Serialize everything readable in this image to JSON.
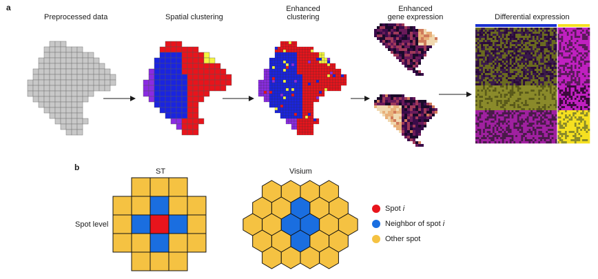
{
  "panel_a": {
    "letter": "a",
    "stages": {
      "preprocessed": "Preprocessed data",
      "spatial": "Spatial clustering",
      "enhanced_clustering_l1": "Enhanced",
      "enhanced_clustering_l2": "clustering",
      "enhanced_gene_l1": "Enhanced",
      "enhanced_gene_l2": "gene expression",
      "differential": "Differential expression"
    }
  },
  "panel_b": {
    "letter": "b",
    "st_title": "ST",
    "visium_title": "Visium",
    "row_label": "Spot level",
    "legend": [
      {
        "label_pre": "Spot ",
        "label_italic": "i",
        "color": "#e8141c"
      },
      {
        "label_pre": "Neighbor of spot ",
        "label_italic": "i",
        "color": "#1a6ee0"
      },
      {
        "label_pre": "Other spot",
        "label_italic": "",
        "color": "#f5c242"
      }
    ]
  },
  "colors": {
    "grid_gray": "#c8c8c8",
    "cluster_red": "#e8141c",
    "cluster_blue": "#1a24e0",
    "cluster_purple": "#8a2be2",
    "cluster_yellow": "#f5f542",
    "heatmap_dark": "#2a0a3a",
    "heatmap_olive": "#8a8a2a",
    "heatmap_magenta": "#c020c0",
    "bar_blue": "#1a30d0",
    "bar_yellow": "#f5e020"
  }
}
